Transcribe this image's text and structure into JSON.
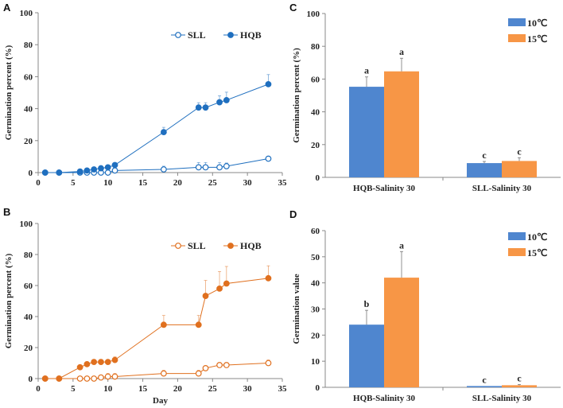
{
  "colors": {
    "blue": "#1f6fbf",
    "orange": "#e0701f",
    "bar_blue": "#4f86cf",
    "bar_orange": "#f79646"
  },
  "chart_data": [
    {
      "panel": "A",
      "type": "line",
      "ylabel": "Germination percent (%)",
      "xlabel": "",
      "xlim": [
        0,
        35
      ],
      "ylim": [
        0,
        100
      ],
      "xticks": [
        "0",
        "5",
        "10",
        "15",
        "20",
        "25",
        "30",
        "35"
      ],
      "yticks": [
        "0",
        "20",
        "40",
        "60",
        "80",
        "100"
      ],
      "legend": "top-right",
      "x": [
        1,
        3,
        6,
        7,
        8,
        9,
        10,
        11,
        18,
        23,
        24,
        26,
        27,
        33
      ],
      "series": [
        {
          "name": "SLL",
          "marker": "open",
          "color": "#1f6fbf",
          "values": [
            0,
            0,
            0,
            0,
            0,
            0,
            0,
            1.3,
            2,
            3.3,
            3.3,
            3.3,
            4,
            8.7
          ],
          "errors": [
            0,
            0,
            0,
            0,
            0,
            0,
            0,
            0,
            2,
            3,
            3,
            3,
            2,
            0
          ]
        },
        {
          "name": "HQB",
          "marker": "filled",
          "color": "#1f6fbf",
          "values": [
            0,
            0,
            0.7,
            1.3,
            2,
            2.7,
            3.3,
            4.7,
            25.3,
            40.7,
            40.7,
            44,
            45.3,
            55.3
          ],
          "errors": [
            0,
            0,
            0,
            0,
            0,
            0,
            0,
            0,
            3,
            3,
            3,
            4,
            5,
            6
          ]
        }
      ]
    },
    {
      "panel": "B",
      "type": "line",
      "ylabel": "Germination percent (%)",
      "xlabel": "Day",
      "xlim": [
        0,
        35
      ],
      "ylim": [
        0,
        100
      ],
      "xticks": [
        "0",
        "5",
        "10",
        "15",
        "20",
        "25",
        "30",
        "35"
      ],
      "yticks": [
        "0",
        "20",
        "40",
        "60",
        "80",
        "100"
      ],
      "legend": "top-right",
      "x": [
        1,
        3,
        6,
        7,
        8,
        9,
        10,
        11,
        18,
        23,
        24,
        26,
        27,
        33
      ],
      "series": [
        {
          "name": "SLL",
          "marker": "open",
          "color": "#e0701f",
          "values": [
            0,
            0,
            0,
            0,
            0,
            0.7,
            1.3,
            1.3,
            3.3,
            3.3,
            6.7,
            8.7,
            8.7,
            10
          ],
          "errors": [
            0,
            0,
            0,
            0,
            0,
            0,
            2,
            2,
            2,
            2,
            0,
            0,
            0,
            2
          ]
        },
        {
          "name": "HQB",
          "marker": "filled",
          "color": "#e0701f",
          "values": [
            0,
            0,
            7.3,
            9.3,
            10.7,
            10.7,
            10.7,
            12,
            34.7,
            34.7,
            53.3,
            58,
            61.3,
            64.7
          ],
          "errors": [
            0,
            0,
            0,
            0,
            0,
            0,
            0,
            2,
            6,
            6,
            10,
            11,
            11,
            8
          ]
        }
      ]
    },
    {
      "panel": "C",
      "type": "bar",
      "ylabel": "Germination percent (%)",
      "ylim": [
        0,
        100
      ],
      "yticks": [
        "0",
        "20",
        "40",
        "60",
        "80",
        "100"
      ],
      "legend": "top-right",
      "categories": [
        "HQB-Salinity 30",
        "SLL-Salinity 30"
      ],
      "series": [
        {
          "name": "10℃",
          "color": "#4f86cf",
          "values": [
            55.3,
            8.7
          ],
          "errors": [
            6,
            1
          ],
          "letters": [
            "a",
            "c"
          ]
        },
        {
          "name": "15℃",
          "color": "#f79646",
          "values": [
            64.7,
            10
          ],
          "errors": [
            8,
            2
          ],
          "letters": [
            "a",
            "c"
          ]
        }
      ]
    },
    {
      "panel": "D",
      "type": "bar",
      "ylabel": "Germination value",
      "ylim": [
        0,
        60
      ],
      "yticks": [
        "0",
        "10",
        "20",
        "30",
        "40",
        "50",
        "60"
      ],
      "legend": "top-right",
      "categories": [
        "HQB-Salinity 30",
        "SLL-Salinity 30"
      ],
      "series": [
        {
          "name": "10℃",
          "color": "#4f86cf",
          "values": [
            24,
            0.5
          ],
          "errors": [
            5.5,
            0
          ],
          "letters": [
            "b",
            "c"
          ]
        },
        {
          "name": "15℃",
          "color": "#f79646",
          "values": [
            42,
            0.8
          ],
          "errors": [
            10,
            0.3
          ],
          "letters": [
            "a",
            "c"
          ]
        }
      ]
    }
  ]
}
